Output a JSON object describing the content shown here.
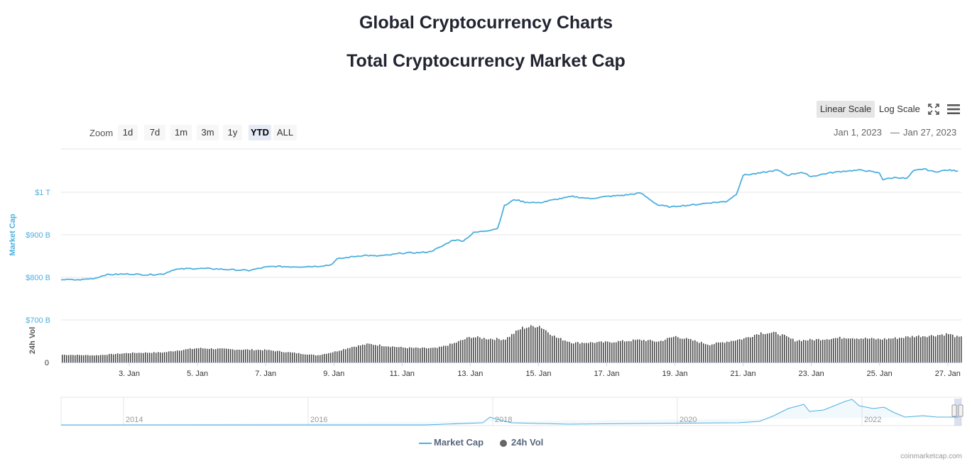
{
  "header": {
    "title": "Global Cryptocurrency Charts",
    "subtitle": "Total Cryptocurrency Market Cap"
  },
  "toolbar": {
    "linear_label": "Linear Scale",
    "log_label": "Log Scale",
    "active_scale": "linear"
  },
  "zoom": {
    "label": "Zoom",
    "options": [
      "1d",
      "7d",
      "1m",
      "3m",
      "1y",
      "YTD",
      "ALL"
    ],
    "selected": "YTD"
  },
  "range": {
    "from": "Jan 1, 2023",
    "separator": "—",
    "to": "Jan 27, 2023"
  },
  "legend": {
    "market_cap": "Market Cap",
    "volume": "24h Vol"
  },
  "credits": "coinmarketcap.com",
  "colors": {
    "market_cap": "#4cafe0",
    "volume": "#555555",
    "navigator": "#4cafe0"
  },
  "chart_data": {
    "type": "line",
    "title": "Total Cryptocurrency Market Cap",
    "x_domain": [
      "Jan 1, 2023",
      "Jan 27, 2023"
    ],
    "x_ticks": [
      "3. Jan",
      "5. Jan",
      "7. Jan",
      "9. Jan",
      "11. Jan",
      "13. Jan",
      "15. Jan",
      "17. Jan",
      "19. Jan",
      "21. Jan",
      "23. Jan",
      "25. Jan",
      "27. Jan"
    ],
    "x_tick_days": [
      3,
      5,
      7,
      9,
      11,
      13,
      15,
      17,
      19,
      21,
      23,
      25,
      27
    ],
    "y_axis": {
      "label": "Market Cap",
      "ticks": [
        "$800 B",
        "$900 B",
        "$1 T"
      ],
      "tick_values": [
        800,
        900,
        1000
      ],
      "range": [
        735,
        1100
      ],
      "unit": "billion USD"
    },
    "volume_axis": {
      "label": "24h Vol",
      "ticks": [
        "0",
        "$700 B"
      ],
      "tick_values": [
        0,
        700
      ]
    },
    "series": [
      {
        "name": "Market Cap",
        "days": [
          1,
          1.5,
          2,
          2.3,
          2.6,
          3,
          3.5,
          4,
          4.3,
          4.6,
          5,
          5.5,
          6,
          6.5,
          7,
          7.3,
          7.6,
          8,
          8.5,
          8.9,
          9.1,
          9.5,
          9.9,
          10.2,
          10.6,
          11,
          11.5,
          11.8,
          12.1,
          12.5,
          12.8,
          13.1,
          13.5,
          13.8,
          14,
          14.3,
          14.6,
          15,
          15.5,
          16,
          16.5,
          17,
          17.5,
          18,
          18.5,
          18.9,
          19.1,
          19.5,
          20,
          20.5,
          20.8,
          21,
          21.5,
          22,
          22.3,
          22.7,
          23,
          23.5,
          24,
          24.5,
          25,
          25.1,
          25.5,
          25.8,
          26,
          26.3,
          26.6,
          27,
          27.3
        ],
        "values": [
          795,
          794,
          798,
          806,
          807,
          808,
          806,
          808,
          818,
          820,
          821,
          820,
          818,
          816,
          824,
          826,
          825,
          825,
          826,
          829,
          843,
          848,
          852,
          850,
          852,
          857,
          858,
          860,
          870,
          888,
          886,
          905,
          910,
          915,
          968,
          983,
          977,
          975,
          983,
          990,
          985,
          990,
          993,
          998,
          970,
          965,
          968,
          970,
          975,
          978,
          995,
          1040,
          1045,
          1052,
          1040,
          1047,
          1037,
          1045,
          1050,
          1052,
          1045,
          1030,
          1035,
          1032,
          1050,
          1055,
          1048,
          1052,
          1050
        ]
      },
      {
        "name": "24h Vol",
        "days": [
          1,
          2,
          2.5,
          3,
          4,
          4.5,
          5,
          6,
          7,
          8,
          8.5,
          9,
          9.5,
          10,
          11,
          11.5,
          12,
          12.5,
          13,
          13.5,
          14,
          14.5,
          15,
          15.5,
          16,
          17,
          18,
          18.5,
          19,
          20,
          21,
          21.5,
          22,
          22.5,
          23,
          24,
          25,
          25.5,
          26,
          26.5,
          27,
          27.3
        ],
        "values": [
          130,
          120,
          140,
          160,
          170,
          210,
          240,
          220,
          210,
          150,
          120,
          180,
          260,
          310,
          250,
          240,
          240,
          320,
          430,
          400,
          390,
          580,
          620,
          420,
          330,
          340,
          380,
          350,
          440,
          300,
          400,
          500,
          490,
          370,
          380,
          420,
          390,
          410,
          440,
          450,
          480,
          420
        ]
      }
    ],
    "navigator": {
      "x_ticks": [
        "2014",
        "2016",
        "2018",
        "2020",
        "2022"
      ]
    },
    "legend_position": "bottom-center",
    "grid": true
  }
}
